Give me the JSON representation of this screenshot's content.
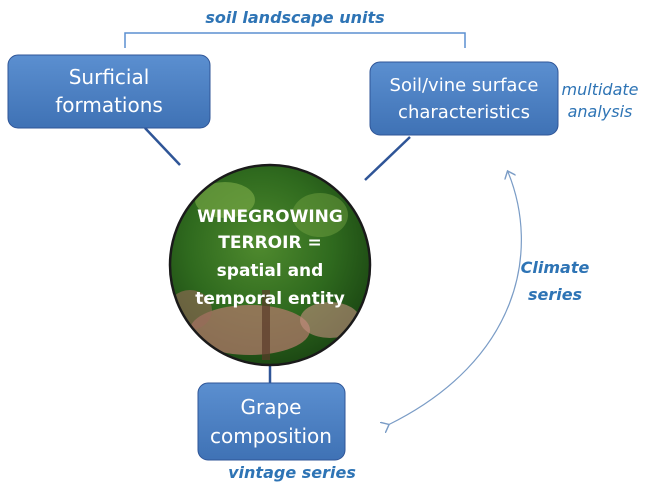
{
  "top_label": "soil landscape units",
  "nodes": [
    {
      "label": [
        "Surficial",
        "formations"
      ]
    },
    {
      "label": [
        "Soil/vine surface",
        "characteristics"
      ]
    },
    {
      "label": [
        "Grape",
        "composition"
      ]
    }
  ],
  "center": {
    "label": [
      "WINEGROWING",
      "TERROIR =",
      "spatial and",
      "temporal entity"
    ]
  },
  "annotations": {
    "multidate": [
      "multidate",
      "analysis"
    ],
    "climate": [
      "Climate",
      "series"
    ],
    "vintage": "vintage series"
  }
}
